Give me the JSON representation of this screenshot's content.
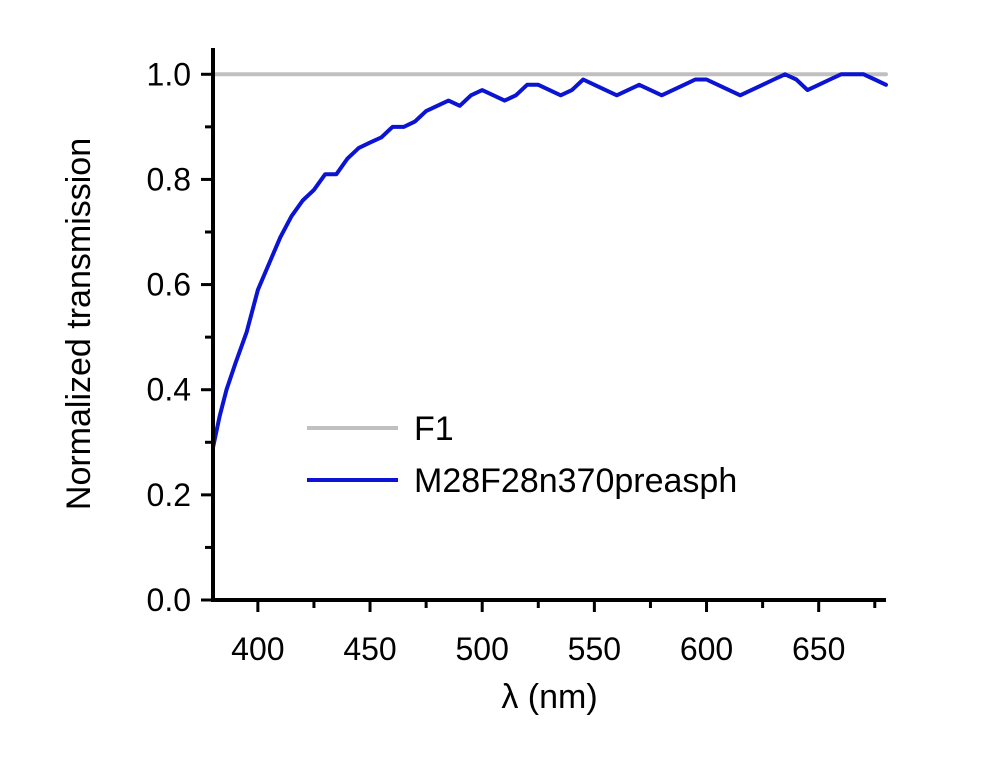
{
  "chart_data": {
    "type": "line",
    "xlabel": "λ (nm)",
    "ylabel": "Normalized transmission",
    "xlim": [
      380,
      680
    ],
    "ylim": [
      0.0,
      1.05
    ],
    "x_ticks": [
      400,
      450,
      500,
      550,
      600,
      650
    ],
    "x_tick_labels": [
      "400",
      "450",
      "500",
      "550",
      "600",
      "650"
    ],
    "x_minor_ticks": [
      375,
      425,
      475,
      525,
      575,
      625,
      675
    ],
    "y_ticks": [
      0.0,
      0.2,
      0.4,
      0.6,
      0.8,
      1.0
    ],
    "y_tick_labels": [
      "0.0",
      "0.2",
      "0.4",
      "0.6",
      "0.8",
      "1.0"
    ],
    "y_minor_ticks": [
      0.1,
      0.3,
      0.5,
      0.7,
      0.9
    ],
    "grid": false,
    "legend_position": "lower-center",
    "series": [
      {
        "name": "F1",
        "color": "#c0c0c0",
        "x": [
          380,
          680
        ],
        "y": [
          1.0,
          1.0
        ]
      },
      {
        "name": "M28F28n370preasph",
        "color": "#0a14d2",
        "x": [
          380,
          383,
          386,
          390,
          395,
          400,
          405,
          410,
          415,
          420,
          425,
          430,
          435,
          440,
          445,
          450,
          455,
          460,
          465,
          470,
          475,
          480,
          485,
          490,
          495,
          500,
          505,
          510,
          515,
          520,
          525,
          530,
          535,
          540,
          545,
          550,
          555,
          560,
          565,
          570,
          575,
          580,
          585,
          590,
          595,
          600,
          605,
          610,
          615,
          620,
          625,
          630,
          635,
          640,
          645,
          650,
          655,
          660,
          665,
          670,
          675,
          680
        ],
        "y": [
          0.29,
          0.35,
          0.4,
          0.45,
          0.51,
          0.59,
          0.64,
          0.69,
          0.73,
          0.76,
          0.78,
          0.81,
          0.81,
          0.84,
          0.86,
          0.87,
          0.88,
          0.9,
          0.9,
          0.91,
          0.93,
          0.94,
          0.95,
          0.94,
          0.96,
          0.97,
          0.96,
          0.95,
          0.96,
          0.98,
          0.98,
          0.97,
          0.96,
          0.97,
          0.99,
          0.98,
          0.97,
          0.96,
          0.97,
          0.98,
          0.97,
          0.96,
          0.97,
          0.98,
          0.99,
          0.99,
          0.98,
          0.97,
          0.96,
          0.97,
          0.98,
          0.99,
          1.0,
          0.99,
          0.97,
          0.98,
          0.99,
          1.0,
          1.0,
          1.0,
          0.99,
          0.98
        ]
      }
    ]
  }
}
